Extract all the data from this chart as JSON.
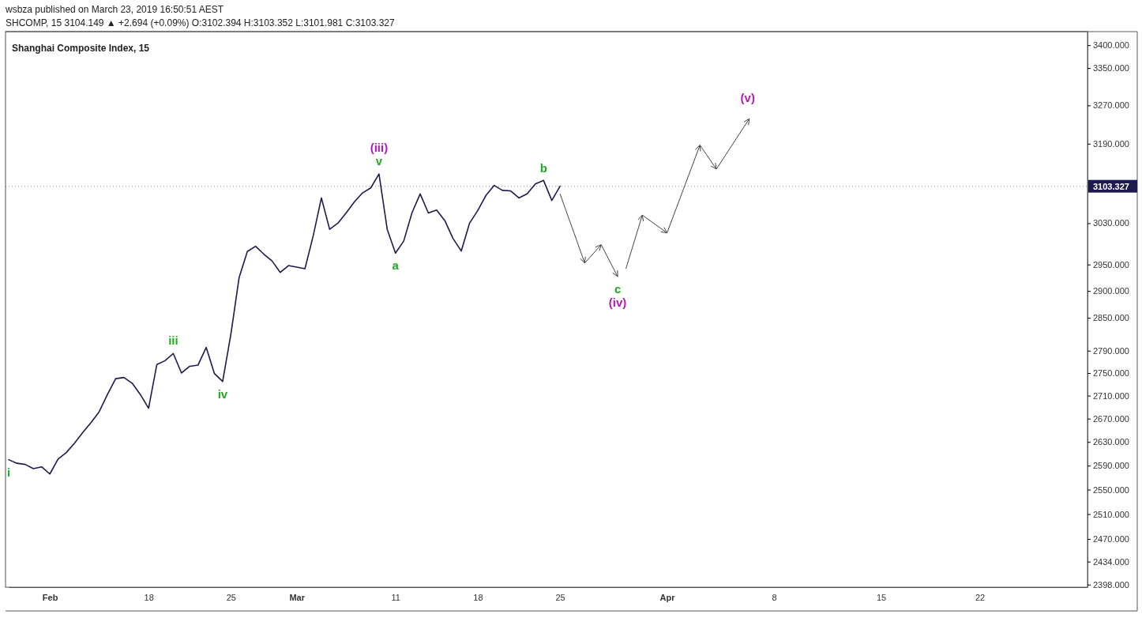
{
  "chart_data": {
    "type": "line",
    "title": "Shanghai Composite Index, 15",
    "subtitle": "SHCOMP, 15  3104.149 ▲ +2.694 (+0.09%) O:3102.394 H:3103.352 L:3101.981 C:3103.327",
    "annotations": [
      "wsbza published on March 23, 2019 16:50:51 AEST",
      {
        "text": "i",
        "y": 2600
      },
      {
        "text": "iii",
        "y": 2785
      },
      {
        "text": "iv",
        "y": 2735
      },
      {
        "text": "v",
        "y": 3128
      },
      {
        "text": "(iii)",
        "y": 3128
      },
      {
        "text": "a",
        "y": 2972
      },
      {
        "text": "b",
        "y": 3115
      },
      "c",
      "(iv)",
      "(v)"
    ],
    "log": true,
    "ylim": [
      2394,
      3430
    ],
    "categories": [
      null,
      null,
      null,
      null,
      null,
      "Feb",
      null,
      null,
      null,
      null,
      null,
      null,
      null,
      null,
      null,
      null,
      null,
      "18",
      null,
      null,
      null,
      null,
      null,
      null,
      null,
      null,
      null,
      "25",
      null,
      null,
      null,
      null,
      null,
      null,
      null,
      "Mar",
      null,
      null,
      null,
      null,
      null,
      null,
      null,
      null,
      null,
      null,
      null,
      "11",
      null,
      null,
      null,
      null,
      null,
      null,
      null,
      null,
      null,
      "18",
      null,
      null,
      null,
      null,
      null,
      null,
      null,
      null,
      null,
      "25",
      null,
      null,
      null,
      null,
      null,
      null,
      null,
      null,
      null,
      null,
      null,
      null,
      "Apr",
      null,
      null,
      null,
      null,
      null,
      null,
      null,
      null,
      null,
      null,
      null,
      null,
      "8",
      null,
      null,
      null,
      null,
      null,
      null,
      null,
      null,
      null,
      null,
      null,
      null,
      "15",
      null,
      null,
      null,
      null,
      null,
      null,
      null,
      null,
      null,
      null,
      null,
      "22",
      null,
      null,
      null,
      null,
      null,
      null,
      null,
      null,
      null,
      null,
      null,
      null,
      null
    ],
    "yticks": [
      {
        "value": 3400,
        "label": "3400.000"
      },
      {
        "value": 3350,
        "label": "3350.000"
      },
      {
        "value": 3270,
        "label": "3270.000"
      },
      {
        "value": 3190,
        "label": "3190.000"
      },
      {
        "value": 3030,
        "label": "3030.000"
      },
      {
        "value": 2950,
        "label": "2950.000"
      },
      {
        "value": 2900,
        "label": "2900.000"
      },
      {
        "value": 2850,
        "label": "2850.000"
      },
      {
        "value": 2790,
        "label": "2790.000"
      },
      {
        "value": 2750,
        "label": "2750.000"
      },
      {
        "value": 2710,
        "label": "2710.000"
      },
      {
        "value": 2670,
        "label": "2670.000"
      },
      {
        "value": 2630,
        "label": "2630.000"
      },
      {
        "value": 2590,
        "label": "2590.000"
      },
      {
        "value": 2550,
        "label": "2550.000"
      },
      {
        "value": 2510,
        "label": "2510.000"
      },
      {
        "value": 2470,
        "label": "2470.000"
      },
      {
        "value": 2434,
        "label": "2434.000"
      },
      {
        "value": 2398,
        "label": "2398.000"
      }
    ],
    "ref_lines": [
      {
        "axis": "y",
        "value": 3103.327,
        "label": "3103.327",
        "color": "#1f1a4d",
        "line_style": "dotted"
      }
    ],
    "series": [
      {
        "color": "#1f1a4d",
        "values": [
          2600,
          2594,
          2592,
          2585,
          2588,
          2576,
          2601,
          2612,
          2628,
          2646,
          2663,
          2682,
          2712,
          2740,
          2742,
          2732,
          2712,
          2688,
          2765,
          2772,
          2785,
          2750,
          2762,
          2764,
          2796,
          2749,
          2735,
          2820,
          2925,
          2975,
          2985,
          2970,
          2957,
          2935,
          2948,
          2945,
          2942,
          3005,
          3080,
          3018,
          3030,
          3050,
          3072,
          3090,
          3100,
          3128,
          3018,
          2972,
          2995,
          3050,
          3088,
          3050,
          3056,
          3035,
          3000,
          2976,
          3030,
          3055,
          3085,
          3105,
          3095,
          3094,
          3080,
          3088,
          3108,
          3115,
          3075,
          3103.327,
          null,
          null,
          null,
          null,
          null,
          null,
          null,
          null,
          null,
          null,
          null,
          null,
          null,
          null,
          null,
          null,
          null,
          null,
          null,
          null,
          null,
          null,
          null,
          null,
          null,
          null,
          null,
          null,
          null,
          null,
          null,
          null,
          null,
          null,
          null,
          null,
          null,
          null,
          null,
          null,
          null,
          null,
          null,
          null,
          null,
          null,
          null,
          null,
          null,
          null,
          null,
          null,
          null,
          null,
          null,
          null,
          null,
          null,
          null,
          null,
          null,
          null,
          null,
          null
        ]
      }
    ]
  }
}
